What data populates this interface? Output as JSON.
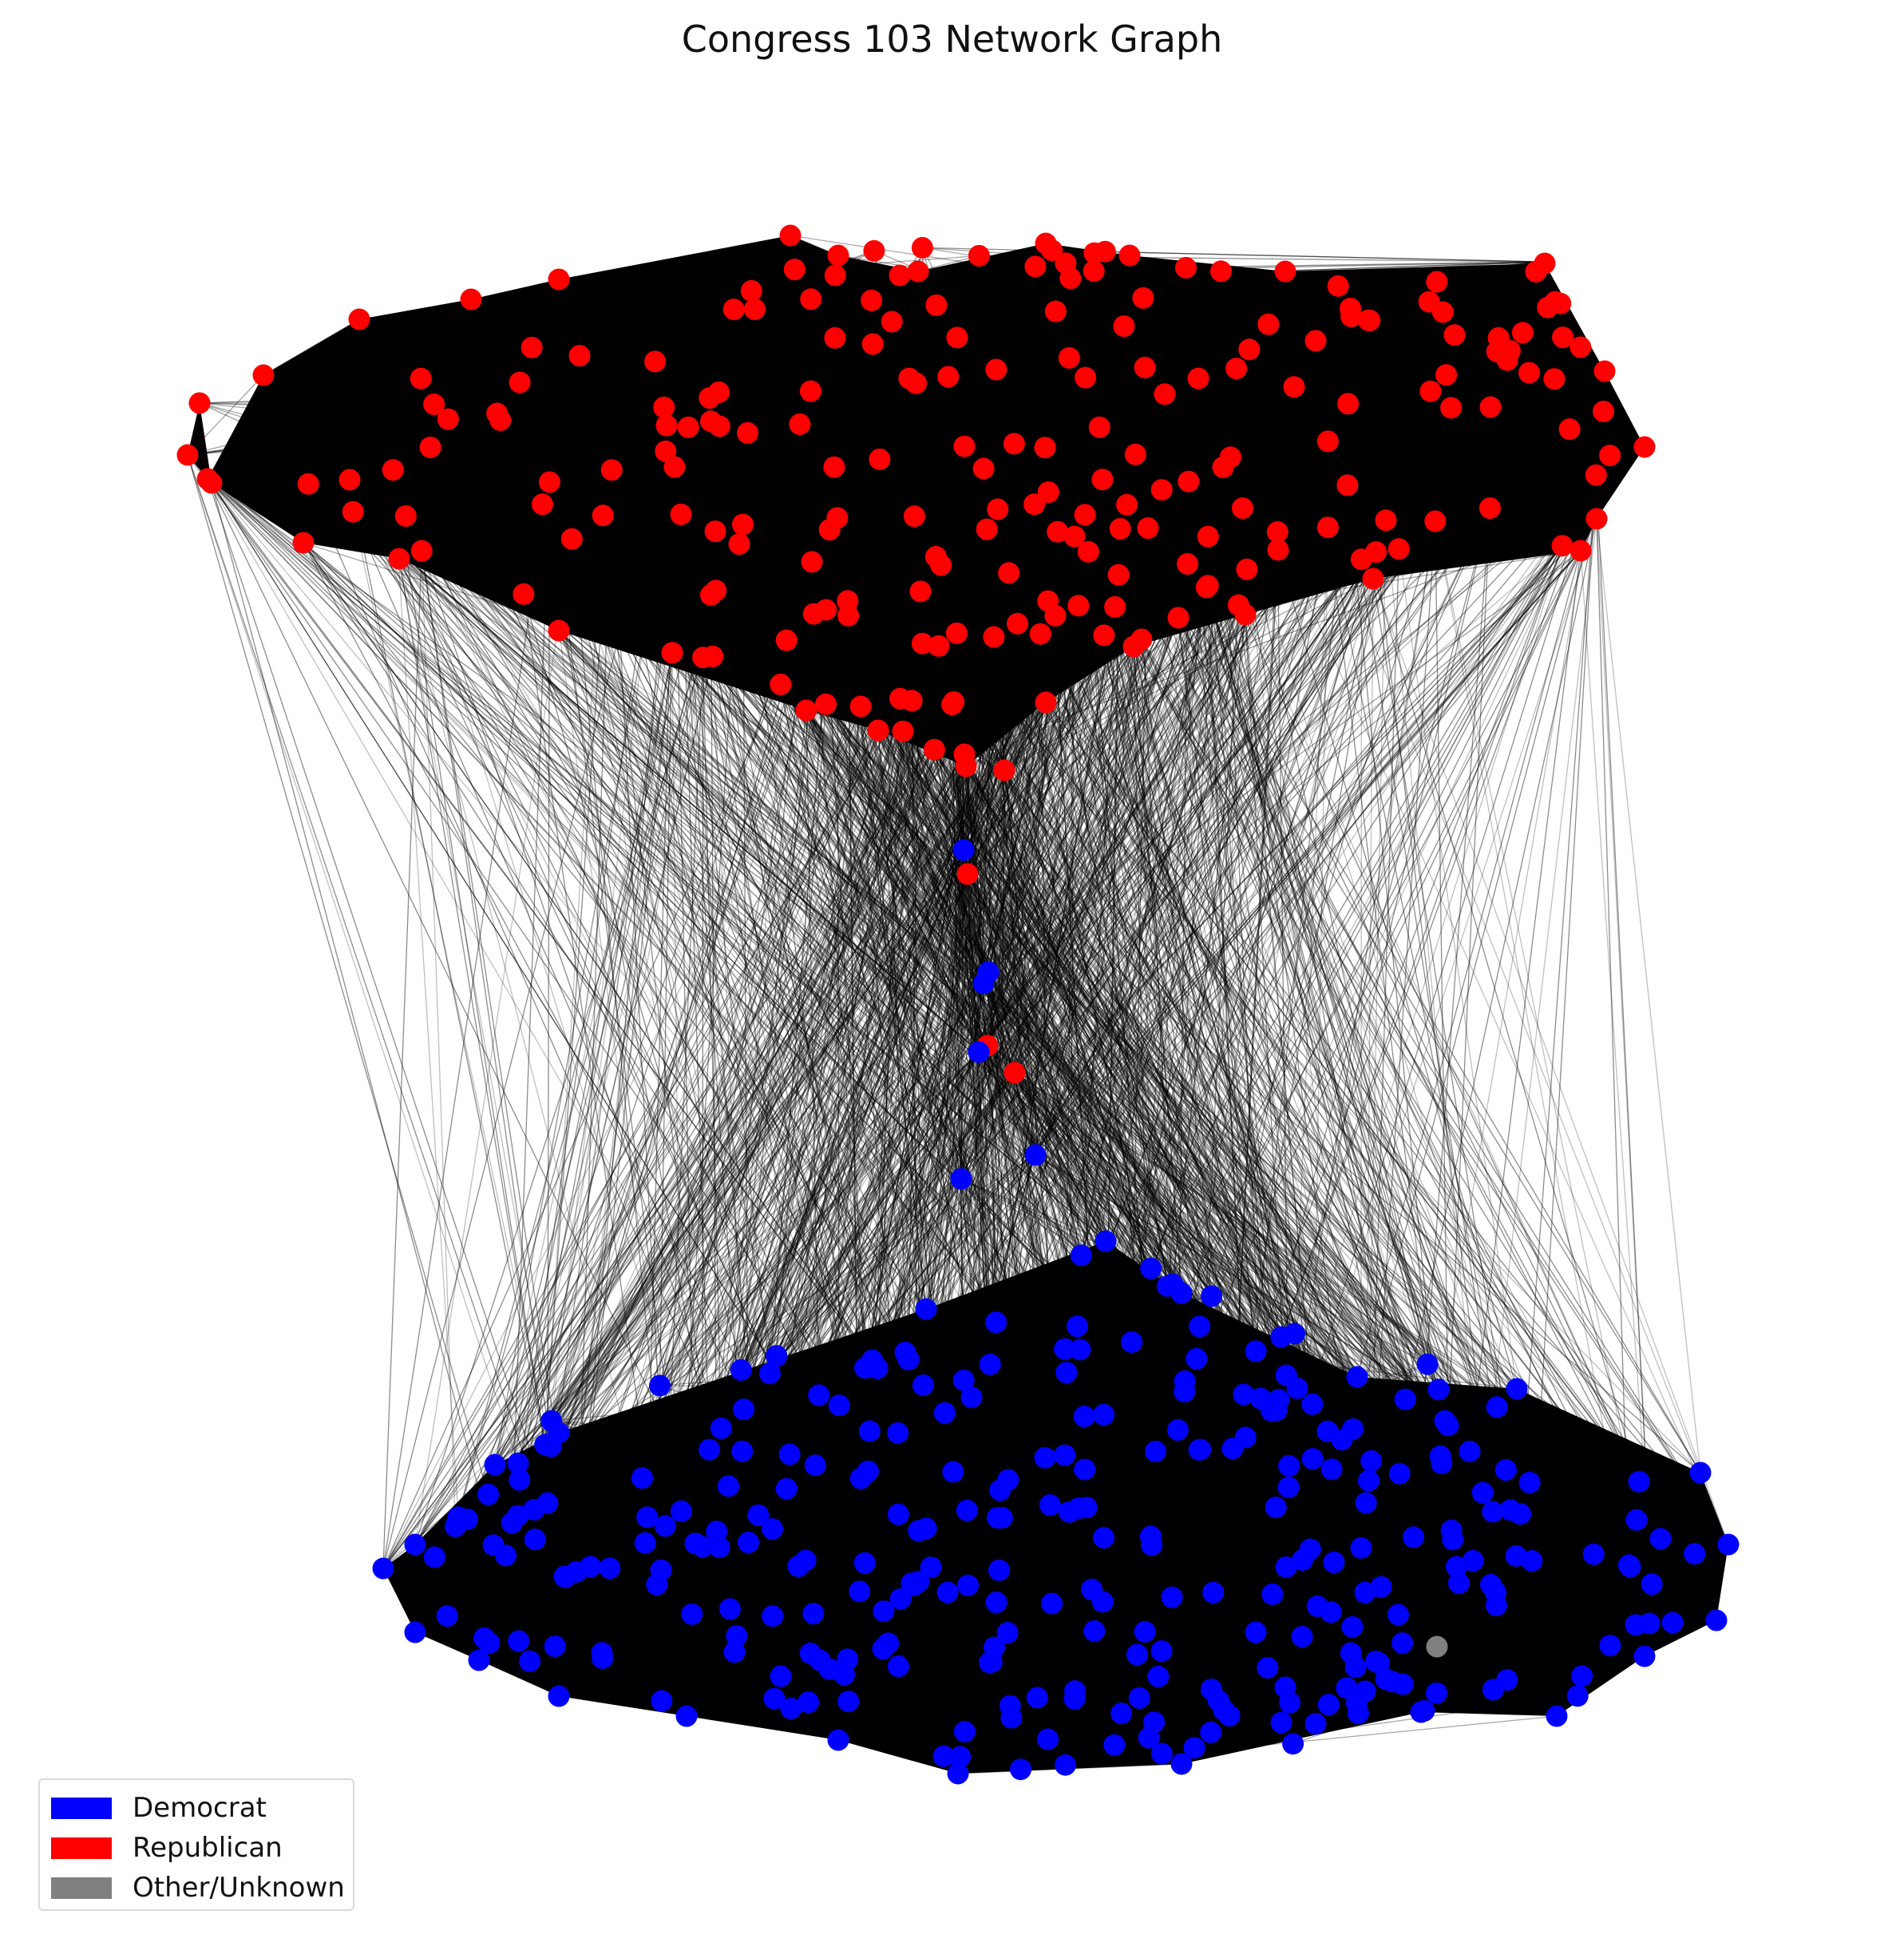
{
  "title": "Congress 103 Network Graph",
  "legend": [
    {
      "label": "Democrat",
      "color": "#0000ff"
    },
    {
      "label": "Republican",
      "color": "#ff0000"
    },
    {
      "label": "Other/Unknown",
      "color": "#808080"
    }
  ],
  "colors": {
    "democrat": "#0000ff",
    "republican": "#ff0000",
    "other": "#808080",
    "edge": "#000000"
  }
}
